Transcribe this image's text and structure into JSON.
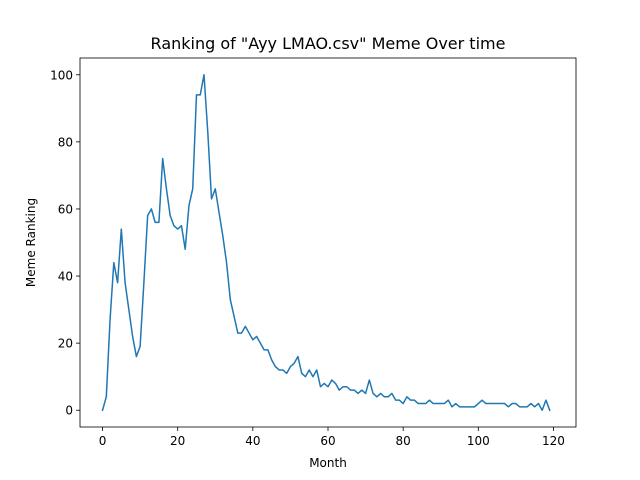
{
  "chart_data": {
    "type": "line",
    "title": "Ranking of \"Ayy LMAO.csv\" Meme Over time",
    "xlabel": "Month",
    "ylabel": "Meme Ranking",
    "xlim": [
      -6,
      126
    ],
    "ylim": [
      -5,
      105
    ],
    "xticks": [
      0,
      20,
      40,
      60,
      80,
      100,
      120
    ],
    "yticks": [
      0,
      20,
      40,
      60,
      80,
      100
    ],
    "grid": false,
    "color": "#1f77b4",
    "series": [
      {
        "x": [
          0,
          1,
          2,
          3,
          4,
          5,
          6,
          7,
          8,
          9,
          10,
          11,
          12,
          13,
          14,
          15,
          16,
          17,
          18,
          19,
          20,
          21,
          22,
          23,
          24,
          25,
          26,
          27,
          28,
          29,
          30,
          31,
          32,
          33,
          34,
          35,
          36,
          37,
          38,
          39,
          40,
          41,
          42,
          43,
          44,
          45,
          46,
          47,
          48,
          49,
          50,
          51,
          52,
          53,
          54,
          55,
          56,
          57,
          58,
          59,
          60,
          61,
          62,
          63,
          64,
          65,
          66,
          67,
          68,
          69,
          70,
          71,
          72,
          73,
          74,
          75,
          76,
          77,
          78,
          79,
          80,
          81,
          82,
          83,
          84,
          85,
          86,
          87,
          88,
          89,
          90,
          91,
          92,
          93,
          94,
          95,
          96,
          97,
          98,
          99,
          100,
          101,
          102,
          103,
          104,
          105,
          106,
          107,
          108,
          109,
          110,
          111,
          112,
          113,
          114,
          115,
          116,
          117,
          118,
          119
        ],
        "values": [
          0,
          4,
          27,
          44,
          38,
          54,
          38,
          30,
          22,
          16,
          19,
          38,
          58,
          60,
          56,
          56,
          75,
          66,
          58,
          55,
          54,
          55,
          48,
          61,
          66,
          94,
          94,
          100,
          83,
          63,
          66,
          59,
          52,
          44,
          33,
          28,
          23,
          23,
          25,
          23,
          21,
          22,
          20,
          18,
          18,
          15,
          13,
          12,
          12,
          11,
          13,
          14,
          16,
          11,
          10,
          12,
          10,
          12,
          7,
          8,
          7,
          9,
          8,
          6,
          7,
          7,
          6,
          6,
          5,
          6,
          5,
          9,
          5,
          4,
          5,
          4,
          4,
          5,
          3,
          3,
          2,
          4,
          3,
          3,
          2,
          2,
          2,
          3,
          2,
          2,
          2,
          2,
          3,
          1,
          2,
          1,
          1,
          1,
          1,
          1,
          2,
          3,
          2,
          2,
          2,
          2,
          2,
          2,
          1,
          2,
          2,
          1,
          1,
          1,
          2,
          1,
          2,
          0,
          3,
          0
        ]
      }
    ]
  }
}
